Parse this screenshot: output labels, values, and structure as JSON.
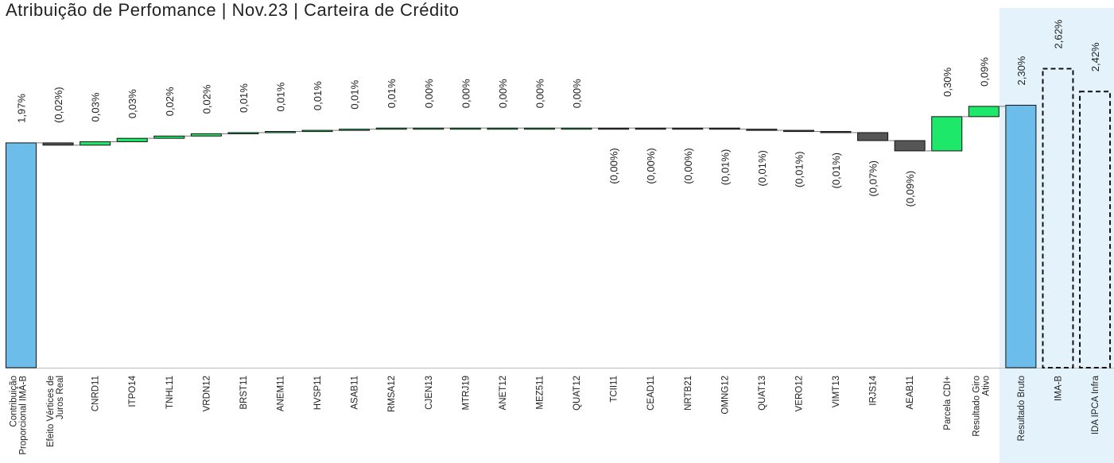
{
  "chart_data": {
    "type": "waterfall",
    "title": "Atribuição de Perfomance | Nov.23 | Carteira de Crédito",
    "categories": [
      [
        "Contribuição",
        "Proporcional IMA-B"
      ],
      [
        "Efeito Vértices de",
        "Juros Real"
      ],
      "CNRD11",
      "ITPO14",
      "TNHL11",
      "VRDN12",
      "BRST11",
      "ANEM11",
      "HVSP11",
      "ASAB11",
      "RMSA12",
      "CJEN13",
      "MTRJ19",
      "ANET12",
      "MEZ511",
      "QUAT12",
      "TCII11",
      "CEAD11",
      "NRTB21",
      "OMNG12",
      "QUAT13",
      "VERO12",
      "VIMT13",
      "IRJS14",
      "AEAB11",
      "Parcela CDI+",
      [
        "Resultado Giro",
        "Ativo"
      ],
      "Resultado Bruto",
      "IMA-B",
      "IDA IPCA Infra"
    ],
    "values": [
      1.97,
      -0.02,
      0.03,
      0.03,
      0.02,
      0.02,
      0.01,
      0.01,
      0.01,
      0.01,
      0.01,
      0,
      0,
      0,
      0,
      0,
      0,
      0,
      0,
      -0.01,
      -0.01,
      -0.01,
      -0.01,
      -0.07,
      -0.09,
      0.3,
      0.09,
      2.3,
      2.62,
      2.42
    ],
    "value_labels": [
      "1,97%",
      "(0,02%)",
      "0,03%",
      "0,03%",
      "0,02%",
      "0,02%",
      "0,01%",
      "0,01%",
      "0,01%",
      "0,01%",
      "0,01%",
      "0,00%",
      "0,00%",
      "0,00%",
      "0,00%",
      "0,00%",
      "(0,00%)",
      "(0,00%)",
      "(0,00%)",
      "(0,01%)",
      "(0,01%)",
      "(0,01%)",
      "(0,01%)",
      "(0,07%)",
      "(0,09%)",
      "0,30%",
      "0,09%",
      "2,30%",
      "2,62%",
      "2,42%"
    ],
    "measures": [
      "total",
      "negative",
      "positive",
      "positive",
      "positive",
      "positive",
      "positive",
      "positive",
      "positive",
      "positive",
      "positive",
      "positive",
      "positive",
      "positive",
      "positive",
      "positive",
      "negative",
      "negative",
      "negative",
      "negative",
      "negative",
      "negative",
      "negative",
      "negative",
      "negative",
      "positive",
      "positive",
      "total",
      "benchmark",
      "benchmark"
    ],
    "colors": {
      "total": "#6cbde9",
      "positive": "#1ee86a",
      "negative": "#555555",
      "benchmark": "none"
    }
  }
}
